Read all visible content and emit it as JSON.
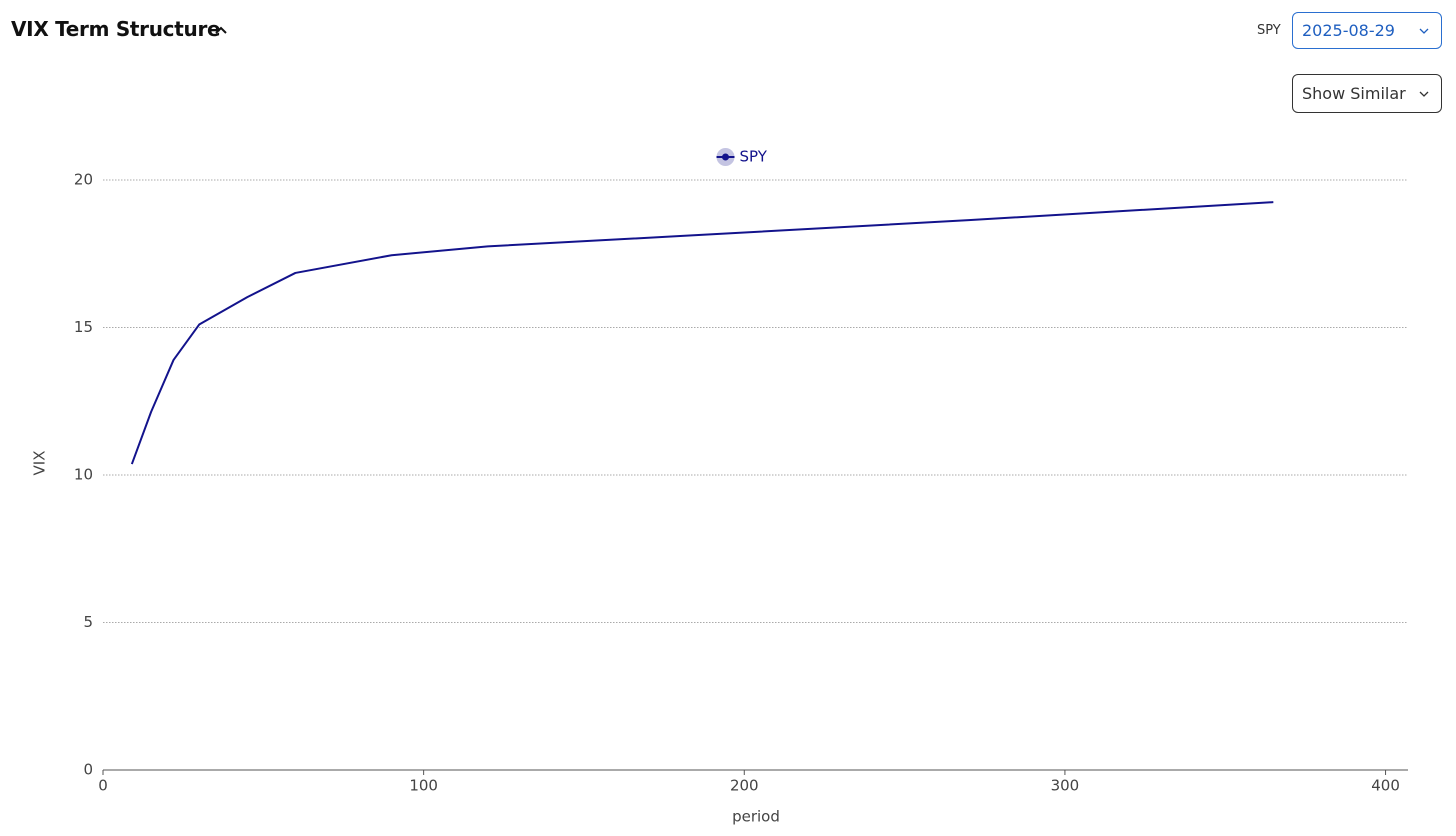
{
  "header": {
    "title": "VIX Term Structure",
    "ticker": "SPY",
    "date": "2025-08-29",
    "button": "Show Similar"
  },
  "chart_data": {
    "type": "line",
    "x_label": "period",
    "y_label": "VIX",
    "x": [
      9,
      15,
      22,
      30,
      45,
      60,
      90,
      120,
      180,
      270,
      365
    ],
    "series": [
      {
        "name": "SPY",
        "color": "#13138c",
        "values": [
          10.37,
          12.14,
          13.9,
          15.1,
          16.03,
          16.85,
          17.45,
          17.75,
          18.1,
          18.64,
          19.25
        ]
      }
    ],
    "xlim": [
      0,
      407
    ],
    "xticks": [
      0,
      100,
      200,
      300,
      400
    ],
    "ylim": [
      0,
      20
    ],
    "yticks": [
      0,
      5,
      10,
      15,
      20
    ],
    "grid": true,
    "legend": "top"
  }
}
